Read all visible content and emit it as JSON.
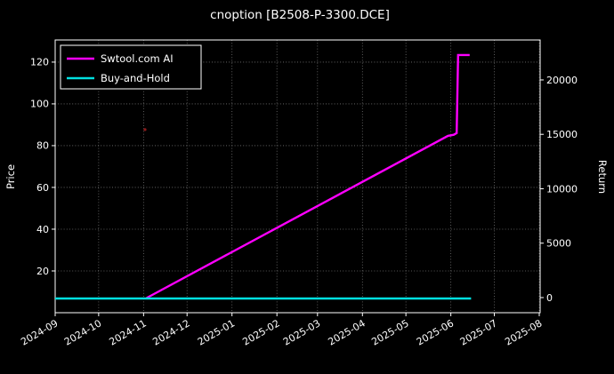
{
  "window": {
    "title": "cnoption [B2508-P-3300.DCE]"
  },
  "chart_data": {
    "type": "line",
    "title": "cnoption [B2508-P-3300.DCE]",
    "xlabel": "",
    "ylabel_left": "Price",
    "ylabel_right": "Return",
    "background_color": "#000000",
    "text_color": "#ffffff",
    "grid": true,
    "grid_style": "dotted",
    "x_domain": [
      "2024-09-01",
      "2025-08-01"
    ],
    "x_ticks": [
      "2024-09",
      "2024-10",
      "2024-11",
      "2024-12",
      "2025-01",
      "2025-02",
      "2025-03",
      "2025-04",
      "2025-05",
      "2025-06",
      "2025-07",
      "2025-08"
    ],
    "ylim_left": [
      0,
      130.6
    ],
    "yticks_left": [
      20,
      40,
      60,
      80,
      100,
      120
    ],
    "ylim_right": [
      -1390,
      23670
    ],
    "yticks_right": [
      0,
      5000,
      10000,
      15000,
      20000
    ],
    "legend": {
      "position": "upper-left",
      "entries": [
        {
          "label": "Swtool.com AI",
          "color": "#ff00ff"
        },
        {
          "label": "Buy-and-Hold",
          "color": "#00e0e0"
        }
      ]
    },
    "series": [
      {
        "name": "Swtool.com AI",
        "color": "#ff00ff",
        "axis": "left",
        "points": [
          [
            "2024-11-03",
            7
          ],
          [
            "2025-05-30",
            84.7
          ],
          [
            "2025-06-03",
            85.2
          ],
          [
            "2025-06-05",
            86
          ],
          [
            "2025-06-06",
            123.4
          ],
          [
            "2025-06-14",
            123.4
          ]
        ]
      },
      {
        "name": "Buy-and-Hold",
        "color": "#00e0e0",
        "axis": "left",
        "points": [
          [
            "2024-09-01",
            6.8
          ],
          [
            "2025-06-15",
            6.8
          ]
        ]
      }
    ],
    "annotations": [
      {
        "type": "point",
        "x": "2024-11-02",
        "y": 87.7,
        "color": "#8b1a1a"
      }
    ]
  }
}
